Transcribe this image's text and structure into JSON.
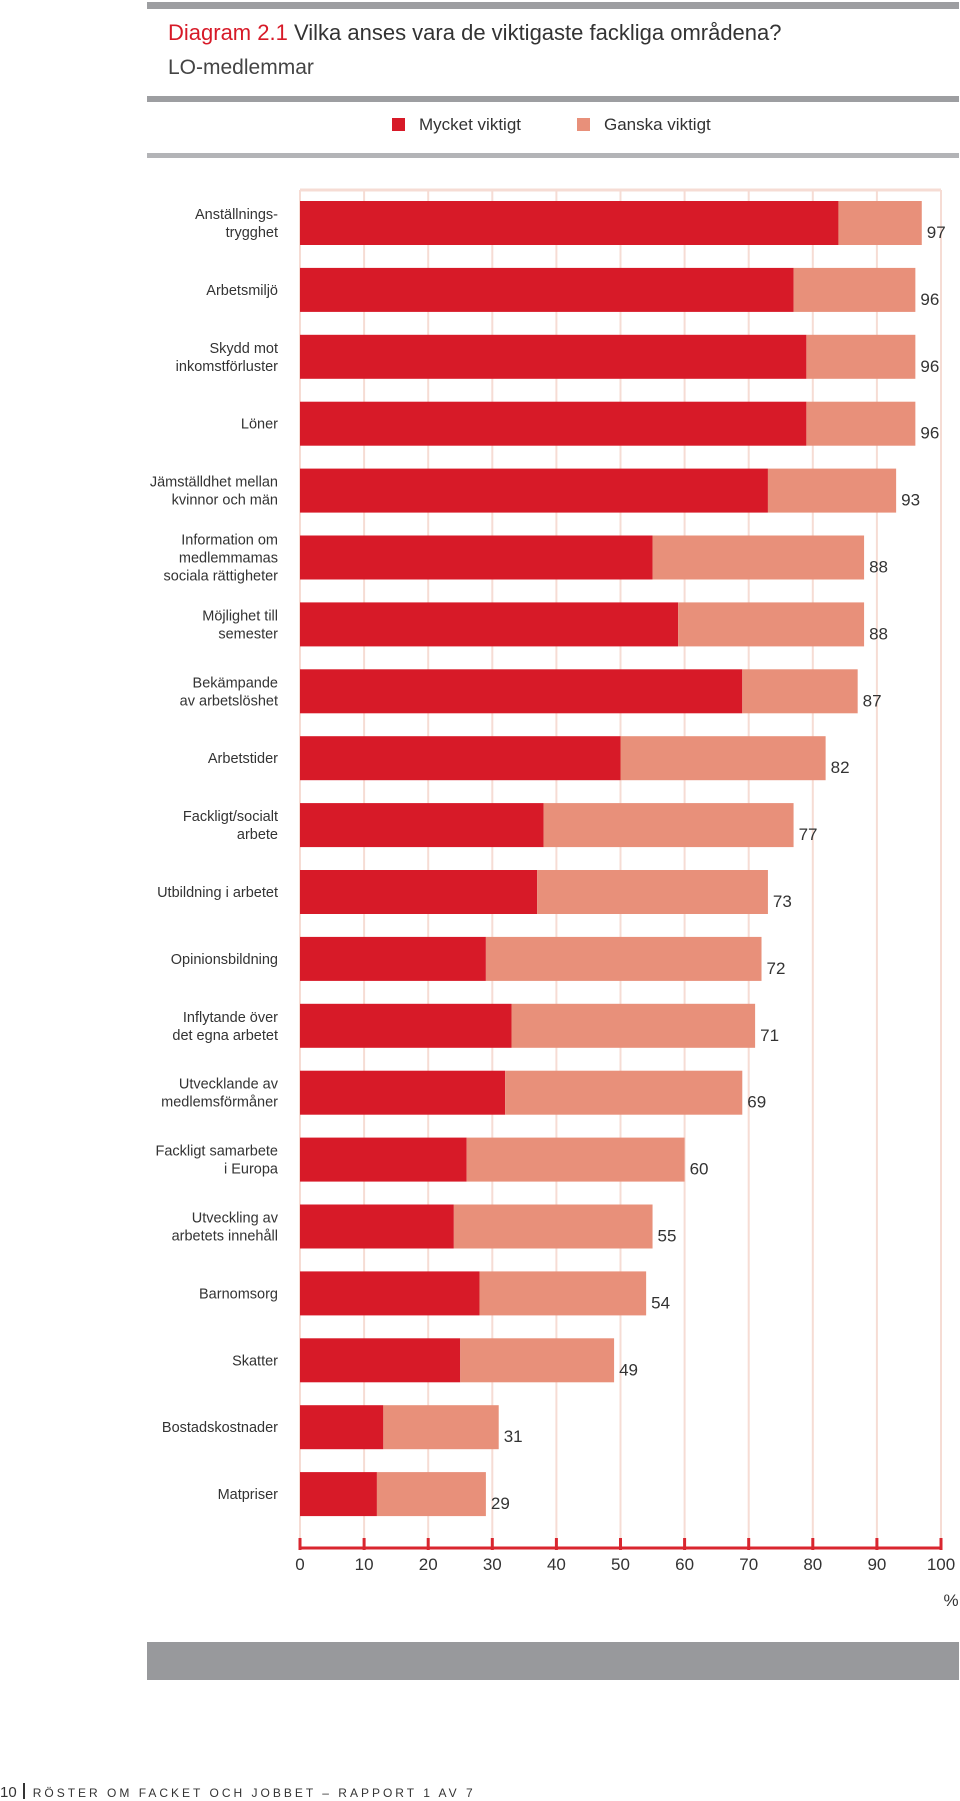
{
  "header": {
    "diagram_number": "Diagram 2.1",
    "title": "Vilka anses vara de viktigaste fackliga områdena?",
    "subtitle": "LO-medlemmar"
  },
  "colors": {
    "very_important": "#d71a28",
    "fairly_important": "#e8907a",
    "gridline": "#f6dcd4",
    "axis": "#d9262f",
    "rule": "#9d9ea1"
  },
  "chart_data": {
    "type": "bar",
    "orientation": "horizontal",
    "stacked": true,
    "title": "Vilka anses vara de viktigaste fackliga områdena?",
    "subtitle": "LO-medlemmar",
    "xlabel": "%",
    "xlim": [
      0,
      100
    ],
    "xticks": [
      "0",
      "10",
      "20",
      "30",
      "40",
      "50",
      "60",
      "70",
      "80",
      "90",
      "100"
    ],
    "legend": [
      "Mycket viktigt",
      "Ganska viktigt"
    ],
    "legend_position": "top",
    "categories": [
      [
        "Anställnings-",
        "trygghet"
      ],
      [
        "Arbetsmiljö"
      ],
      [
        "Skydd mot",
        "inkomstförluster"
      ],
      [
        "Löner"
      ],
      [
        "Jämställdhet mellan",
        "kvinnor och män"
      ],
      [
        "Information om",
        "medlemmamas",
        "sociala rättigheter"
      ],
      [
        "Möjlighet till",
        "semester"
      ],
      [
        "Bekämpande",
        "av arbetslöshet"
      ],
      [
        "Arbetstider"
      ],
      [
        "Fackligt/socialt",
        "arbete"
      ],
      [
        "Utbildning i arbetet"
      ],
      [
        "Opinionsbildning"
      ],
      [
        "Inflytande över",
        "det egna arbetet"
      ],
      [
        "Utvecklande av",
        "medlemsförmåner"
      ],
      [
        "Fackligt samarbete",
        "i Europa"
      ],
      [
        "Utveckling av",
        "arbetets innehåll"
      ],
      [
        "Barnomsorg"
      ],
      [
        "Skatter"
      ],
      [
        "Bostadskostnader"
      ],
      [
        "Matpriser"
      ]
    ],
    "series": [
      {
        "name": "Mycket viktigt",
        "values": [
          84,
          77,
          79,
          79,
          73,
          55,
          59,
          69,
          50,
          38,
          37,
          29,
          33,
          32,
          26,
          24,
          28,
          25,
          13,
          12
        ]
      },
      {
        "name": "Ganska viktigt",
        "values": [
          13,
          19,
          17,
          17,
          20,
          33,
          29,
          18,
          32,
          39,
          36,
          43,
          38,
          37,
          34,
          31,
          26,
          24,
          18,
          17
        ]
      }
    ],
    "totals": [
      "97",
      "96",
      "96",
      "96",
      "93",
      "88",
      "88",
      "87",
      "82",
      "77",
      "73",
      "72",
      "71",
      "69",
      "60",
      "55",
      "54",
      "49",
      "31",
      "29"
    ]
  },
  "footer": {
    "page_number": "10",
    "report": "RÖSTER OM FACKET OCH JOBBET – RAPPORT 1 AV 7"
  }
}
